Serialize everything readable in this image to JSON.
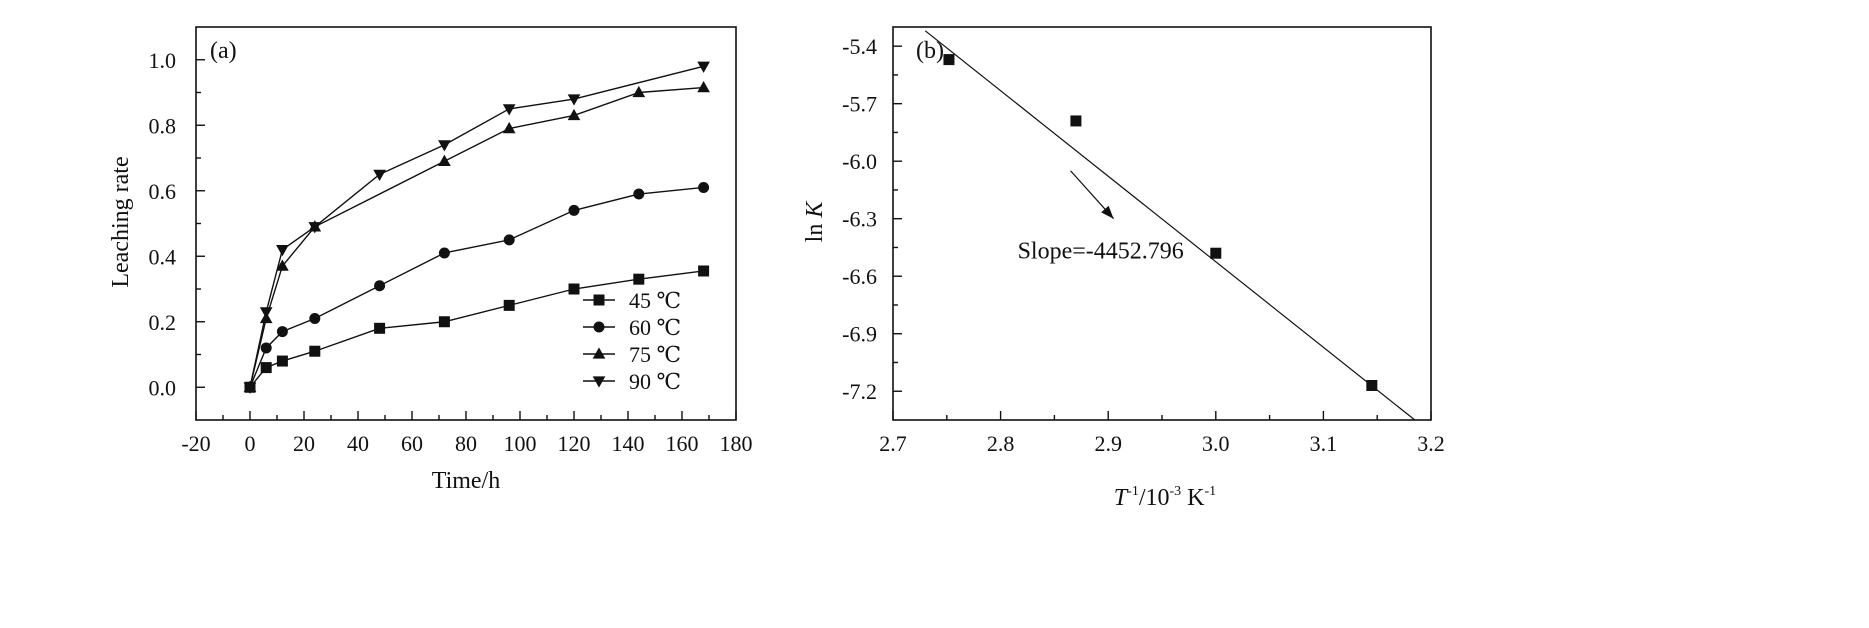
{
  "chart_data": [
    {
      "type": "line",
      "panel_label": "(a)",
      "xlabel": "Time/h",
      "ylabel": "Leaching rate",
      "xlim": [
        -20,
        180
      ],
      "ylim": [
        -0.1,
        1.1
      ],
      "xticks": [
        "-20",
        "0",
        "20",
        "40",
        "60",
        "80",
        "100",
        "120",
        "140",
        "160",
        "180"
      ],
      "yticks": [
        "0.0",
        "0.2",
        "0.4",
        "0.6",
        "0.8",
        "1.0"
      ],
      "legend_position": "bottom-right",
      "series": [
        {
          "name": "45 ℃",
          "marker": "square",
          "x": [
            0,
            6,
            12,
            24,
            48,
            72,
            96,
            120,
            144,
            168
          ],
          "y": [
            0.0,
            0.06,
            0.08,
            0.11,
            0.18,
            0.2,
            0.25,
            0.3,
            0.33,
            0.355
          ]
        },
        {
          "name": "60 ℃",
          "marker": "circle",
          "x": [
            0,
            6,
            12,
            24,
            48,
            72,
            96,
            120,
            144,
            168
          ],
          "y": [
            0.0,
            0.12,
            0.17,
            0.21,
            0.31,
            0.41,
            0.45,
            0.54,
            0.59,
            0.61
          ]
        },
        {
          "name": "75 ℃",
          "marker": "triangle-up",
          "x": [
            0,
            6,
            12,
            24,
            72,
            96,
            120,
            144,
            168
          ],
          "y": [
            0.0,
            0.21,
            0.37,
            0.49,
            0.69,
            0.79,
            0.83,
            0.9,
            0.915
          ]
        },
        {
          "name": "90 ℃",
          "marker": "triangle-down",
          "x": [
            0,
            6,
            12,
            24,
            48,
            72,
            96,
            120,
            168
          ],
          "y": [
            0.0,
            0.23,
            0.42,
            0.49,
            0.65,
            0.74,
            0.85,
            0.88,
            0.98
          ]
        }
      ]
    },
    {
      "type": "scatter",
      "panel_label": "(b)",
      "xlabel_main": "T",
      "xlabel_sup1": "-1",
      "xlabel_mid": "/10",
      "xlabel_sup2": "-3",
      "xlabel_unit": " K",
      "xlabel_sup3": "-1",
      "ylabel_main": "ln ",
      "ylabel_italic": "K",
      "xlim": [
        2.7,
        3.2
      ],
      "ylim": [
        -7.35,
        -5.3
      ],
      "xticks": [
        "2.7",
        "2.8",
        "2.9",
        "3.0",
        "3.1",
        "3.2"
      ],
      "yticks": [
        "-5.4",
        "-5.7",
        "-6.0",
        "-6.3",
        "-6.6",
        "-6.9",
        "-7.2"
      ],
      "points": {
        "marker": "square",
        "x": [
          2.752,
          2.87,
          3.0,
          3.145
        ],
        "y": [
          -5.47,
          -5.79,
          -6.48,
          -7.17
        ]
      },
      "fit_line": {
        "x": [
          2.73,
          3.185
        ],
        "y": [
          -5.32,
          -7.35
        ]
      },
      "annotation": {
        "text": "Slope=-4452.796",
        "arrow_from": [
          2.865,
          -6.05
        ],
        "arrow_to": [
          2.905,
          -6.3
        ]
      }
    }
  ]
}
